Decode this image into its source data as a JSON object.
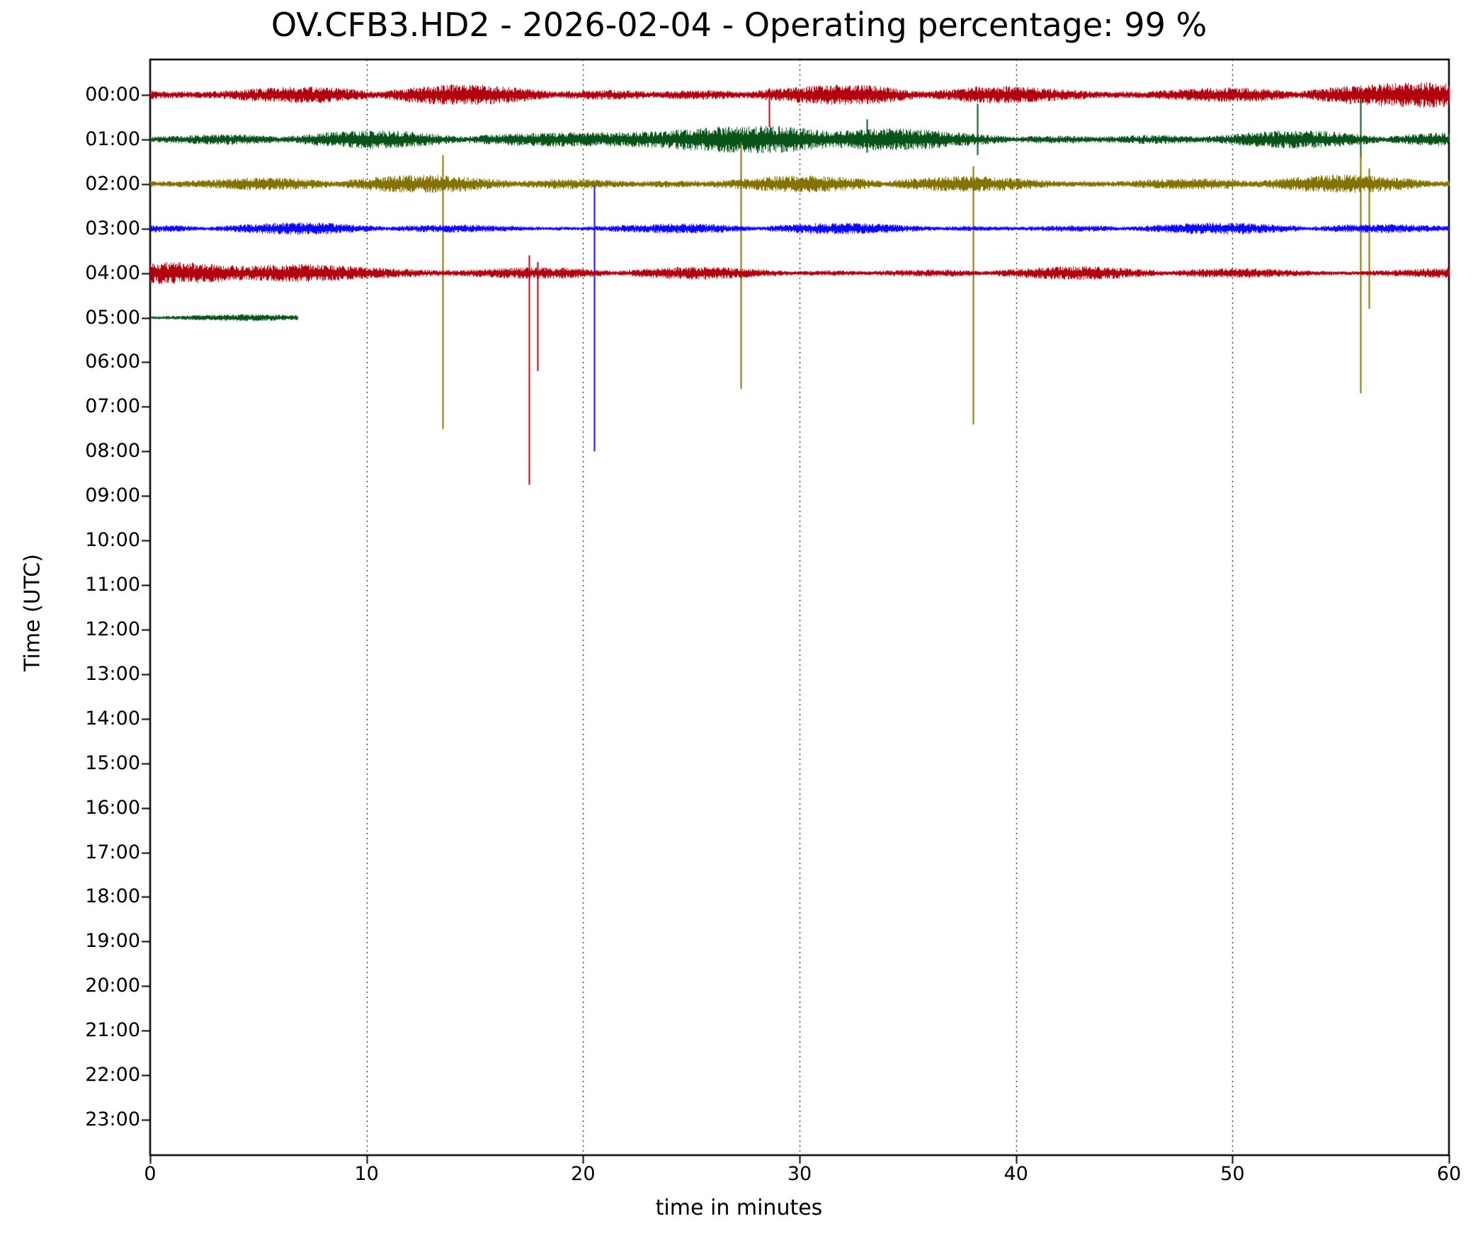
{
  "chart_data": {
    "type": "line",
    "subtype": "helicorder-seismogram",
    "title": "OV.CFB3.HD2 - 2026-02-04 - Operating percentage: 99 %",
    "station": "OV.CFB3.HD2",
    "date": "2026-02-04",
    "operating_percentage": 99,
    "xlabel": "time in minutes",
    "ylabel": "Time (UTC)",
    "xlim": [
      0,
      60
    ],
    "x_ticks": [
      "0",
      "10",
      "20",
      "30",
      "40",
      "50",
      "60"
    ],
    "x_tick_values": [
      0,
      10,
      20,
      30,
      40,
      50,
      60
    ],
    "grid_minutes": [
      10,
      20,
      30,
      40,
      50
    ],
    "grid_style": "dotted-vertical",
    "legend": "none",
    "y_tick_labels": [
      "00:00",
      "01:00",
      "02:00",
      "03:00",
      "04:00",
      "05:00",
      "06:00",
      "07:00",
      "08:00",
      "09:00",
      "10:00",
      "11:00",
      "12:00",
      "13:00",
      "14:00",
      "15:00",
      "16:00",
      "17:00",
      "18:00",
      "19:00",
      "20:00",
      "21:00",
      "22:00",
      "23:00"
    ],
    "color_cycle": [
      "#B2000F",
      "#07531A",
      "#847200",
      "#0E01FF"
    ],
    "rows": [
      {
        "label": "00:00",
        "color": "#B2000F",
        "start_min": 0,
        "end_min": 60,
        "amp": 14,
        "spikes": [
          {
            "minute": 28.6,
            "up": 0.15,
            "down": 0.72
          }
        ]
      },
      {
        "label": "01:00",
        "color": "#07531A",
        "start_min": 0,
        "end_min": 60,
        "amp": 12,
        "spikes": [
          {
            "minute": 33.1,
            "up": 0.45,
            "down": 0.3
          },
          {
            "minute": 38.2,
            "up": 0.8,
            "down": 0.35
          },
          {
            "minute": 55.9,
            "up": 0.9,
            "down": 0.4
          }
        ]
      },
      {
        "label": "02:00",
        "color": "#847200",
        "start_min": 0,
        "end_min": 60,
        "amp": 12,
        "spikes": [
          {
            "minute": 13.5,
            "up": 0.65,
            "down": 5.5
          },
          {
            "minute": 27.3,
            "up": 0.95,
            "down": 4.6
          },
          {
            "minute": 38.0,
            "up": 0.4,
            "down": 5.4
          },
          {
            "minute": 55.9,
            "up": 0.7,
            "down": 4.7
          },
          {
            "minute": 56.3,
            "up": 0.35,
            "down": 2.8
          }
        ]
      },
      {
        "label": "03:00",
        "color": "#0E01FF",
        "start_min": 0,
        "end_min": 60,
        "amp": 8,
        "spikes": [
          {
            "minute": 20.5,
            "up": 0.95,
            "down": 5.0
          }
        ]
      },
      {
        "label": "04:00",
        "color": "#B2000F",
        "start_min": 0,
        "end_min": 60,
        "amp": 9,
        "spikes": [
          {
            "minute": 17.5,
            "up": 0.4,
            "down": 4.75
          },
          {
            "minute": 17.9,
            "up": 0.25,
            "down": 2.2
          }
        ]
      },
      {
        "label": "05:00",
        "color": "#07531A",
        "start_min": 0,
        "end_min": 6.8,
        "amp": 5,
        "spikes": []
      }
    ]
  }
}
